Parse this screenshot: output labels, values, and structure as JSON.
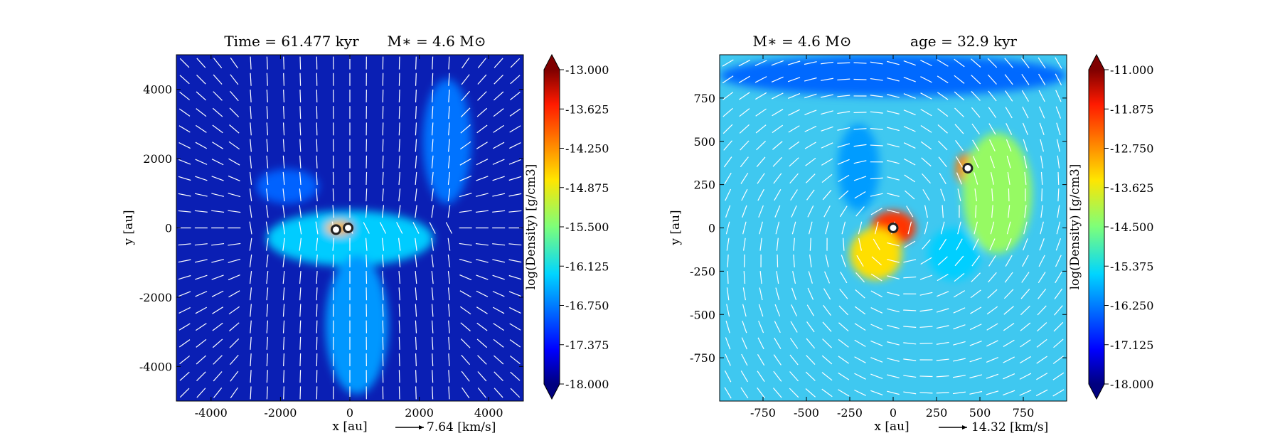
{
  "chart_data": [
    {
      "type": "heatmap",
      "title_left": "Time = 61.477 kyr",
      "title_right": "M∗ = 4.6 M⊙",
      "xlabel": "x [au]",
      "ylabel": "y [au]",
      "xlim": [
        -5000,
        5000
      ],
      "ylim": [
        -5000,
        5000
      ],
      "xticks": [
        -4000,
        -2000,
        0,
        2000,
        4000
      ],
      "yticks": [
        -4000,
        -2000,
        0,
        2000,
        4000
      ],
      "xtick_labels": [
        "-4000",
        "-2000",
        "0",
        "2000",
        "4000"
      ],
      "ytick_labels": [
        "-4000",
        "-2000",
        "0",
        "2000",
        "4000"
      ],
      "colorbar": {
        "label": "log(Density) [g/cm3]",
        "min": -18.0,
        "max": -13.0,
        "tick_labels": [
          "-13.000",
          "-13.625",
          "-14.250",
          "-14.875",
          "-15.500",
          "-16.125",
          "-16.750",
          "-17.375",
          "-18.000"
        ]
      },
      "velocity_key": "7.64 [km/s]",
      "sinks": [
        {
          "x": -400,
          "y": -50
        },
        {
          "x": -50,
          "y": 0
        }
      ],
      "density_features": [
        {
          "x": 0,
          "y": -300,
          "sx": 2400,
          "sy": 800,
          "value": -16.3
        },
        {
          "x": 200,
          "y": -2800,
          "sx": 900,
          "sy": 2000,
          "value": -16.6
        },
        {
          "x": 2800,
          "y": 2500,
          "sx": 700,
          "sy": 1800,
          "value": -16.8
        },
        {
          "x": -1800,
          "y": 1200,
          "sx": 900,
          "sy": 500,
          "value": -16.9
        },
        {
          "x": -300,
          "y": 0,
          "sx": 400,
          "sy": 200,
          "value": -14.6
        },
        {
          "x": -50,
          "y": 0,
          "sx": 150,
          "sy": 100,
          "value": -13.3
        },
        {
          "x": -420,
          "y": -50,
          "sx": 100,
          "sy": 80,
          "value": -13.6
        }
      ]
    },
    {
      "type": "heatmap",
      "title_left": "M∗ = 4.6 M⊙",
      "title_right": "age = 32.9 kyr",
      "xlabel": "x [au]",
      "ylabel": "y [au]",
      "xlim": [
        -1000,
        1000
      ],
      "ylim": [
        -1000,
        1000
      ],
      "xticks": [
        -750,
        -500,
        -250,
        0,
        250,
        500,
        750
      ],
      "yticks": [
        -750,
        -500,
        -250,
        0,
        250,
        500,
        750
      ],
      "xtick_labels": [
        "-750",
        "-500",
        "-250",
        "0",
        "250",
        "500",
        "750"
      ],
      "ytick_labels": [
        "-750",
        "-500",
        "-250",
        "0",
        "250",
        "500",
        "750"
      ],
      "colorbar": {
        "label": "log(Density) [g/cm3]",
        "min": -18.0,
        "max": -11.0,
        "tick_labels": [
          "-11.000",
          "-11.875",
          "-12.750",
          "-13.625",
          "-14.500",
          "-15.375",
          "-16.250",
          "-17.125",
          "-18.000"
        ]
      },
      "velocity_key": "14.32 [km/s]",
      "sinks": [
        {
          "x": 0,
          "y": 0
        },
        {
          "x": 430,
          "y": 345
        }
      ],
      "density_features": [
        {
          "x": 0,
          "y": 0,
          "sx": 130,
          "sy": 100,
          "value": -12.0
        },
        {
          "x": 420,
          "y": 340,
          "sx": 60,
          "sy": 90,
          "value": -12.6
        },
        {
          "x": -100,
          "y": -150,
          "sx": 150,
          "sy": 150,
          "value": -13.4
        },
        {
          "x": 600,
          "y": 200,
          "sx": 200,
          "sy": 350,
          "value": -14.3
        },
        {
          "x": -200,
          "y": 350,
          "sx": 120,
          "sy": 250,
          "value": -16.0
        },
        {
          "x": 350,
          "y": -150,
          "sx": 150,
          "sy": 150,
          "value": -15.6
        },
        {
          "x": 0,
          "y": 880,
          "sx": 1000,
          "sy": 120,
          "value": -16.4
        }
      ]
    }
  ]
}
